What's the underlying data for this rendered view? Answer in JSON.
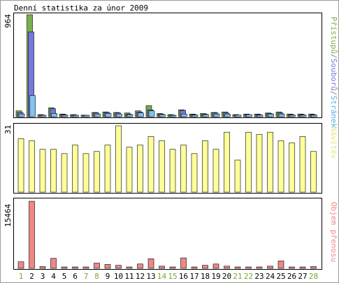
{
  "title": "Denní statistika za únor 2009",
  "chart_data": [
    {
      "type": "bar",
      "panel": "top",
      "ymax_label": "964",
      "ylim": [
        0,
        964
      ],
      "categories": [
        "1",
        "2",
        "3",
        "4",
        "5",
        "6",
        "7",
        "8",
        "9",
        "10",
        "11",
        "12",
        "13",
        "14",
        "15",
        "16",
        "17",
        "18",
        "19",
        "20",
        "21",
        "22",
        "23",
        "24",
        "25",
        "26",
        "27",
        "28"
      ],
      "weekend_days": [
        "1",
        "7",
        "8",
        "14",
        "15",
        "21",
        "22",
        "28"
      ],
      "legend_label": "Stránek/Souborů/Přístupů",
      "legend_parts": [
        {
          "text": "Přístupů",
          "color": "#7ab04a"
        },
        {
          "text": "/",
          "color": "#8a8a8a"
        },
        {
          "text": "Souborů",
          "color": "#7777dd"
        },
        {
          "text": "/",
          "color": "#8a8a8a"
        },
        {
          "text": "Stránek",
          "color": "#5aaee6"
        }
      ],
      "series": [
        {
          "name": "Přístupů",
          "color": "#7ab04a",
          "values": [
            55,
            964,
            20,
            85,
            25,
            20,
            15,
            40,
            45,
            40,
            35,
            55,
            105,
            30,
            20,
            65,
            25,
            30,
            40,
            45,
            20,
            25,
            25,
            35,
            45,
            25,
            25,
            25
          ]
        },
        {
          "name": "Souborů",
          "color": "#7777dd",
          "values": [
            40,
            800,
            15,
            75,
            20,
            15,
            12,
            35,
            40,
            35,
            25,
            45,
            65,
            25,
            15,
            60,
            20,
            25,
            35,
            35,
            15,
            20,
            20,
            30,
            35,
            20,
            20,
            20
          ]
        },
        {
          "name": "Stránek",
          "color": "#80c4f0",
          "values": [
            25,
            200,
            10,
            30,
            15,
            12,
            10,
            25,
            30,
            25,
            20,
            35,
            55,
            20,
            12,
            25,
            15,
            20,
            25,
            25,
            15,
            20,
            15,
            25,
            25,
            15,
            15,
            15
          ]
        }
      ]
    },
    {
      "type": "bar",
      "panel": "middle",
      "ymax_label": "31",
      "ylim": [
        0,
        31
      ],
      "legend_label": "Návštěv",
      "legend_color": "#e6e68a",
      "series": [
        {
          "name": "Návštěv",
          "color": "#ffff99",
          "values": [
            25,
            24,
            20,
            20,
            18,
            22,
            18,
            19,
            22,
            31,
            21,
            22,
            26,
            24,
            20,
            22,
            18,
            24,
            20,
            28,
            15,
            28,
            27,
            28,
            24,
            23,
            26,
            19
          ]
        }
      ]
    },
    {
      "type": "bar",
      "panel": "bottom",
      "ymax_label": "15464",
      "ylim": [
        0,
        15464
      ],
      "legend_label": "Objem přenosu",
      "legend_color": "#ee8888",
      "series": [
        {
          "name": "Objem přenosu",
          "color": "#ee8888",
          "values": [
            1500,
            15464,
            400,
            2300,
            300,
            200,
            200,
            1200,
            900,
            700,
            300,
            1000,
            2200,
            500,
            200,
            2400,
            200,
            700,
            1000,
            500,
            300,
            200,
            300,
            500,
            1700,
            300,
            200,
            400
          ]
        }
      ]
    }
  ]
}
